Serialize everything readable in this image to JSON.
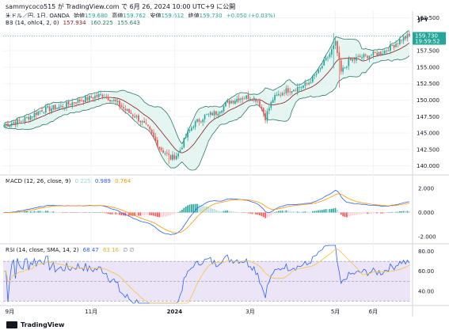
{
  "header": {
    "text": "sammycoco515 が TradingView.com で 6月 26, 2024 10:00 UTC+9 に公開"
  },
  "main_legend": {
    "symbol": "米ドル／円, 1日, OANDA",
    "open_label": "始値",
    "open": "159.680",
    "high_label": "高値",
    "high": "159.762",
    "low_label": "安値",
    "low": "159.612",
    "close_label": "終値",
    "close": "159.730",
    "change": "+0.050 (+0.03%)"
  },
  "bb_legend": {
    "label": "BB (14, ohlc4, 2, 0)",
    "basis": "157.934",
    "upper": "160.225",
    "lower": "155.643"
  },
  "macd_legend": {
    "label": "MACD (12, 26, close, 9)",
    "histogram": "0.225",
    "macd": "0.989",
    "signal": "0.764"
  },
  "rsi_legend": {
    "label": "RSI (14, close, SMA, 14, 2)",
    "rsi": "68.47",
    "ma": "63.16",
    "extra": "∅ ∅"
  },
  "currency": "JPY",
  "price_tag": {
    "value": "159.730",
    "time": "19:59:52"
  },
  "footer": {
    "brand": "TradingView"
  },
  "colors": {
    "up": "#26a69a",
    "down": "#ef5350",
    "bb_fill": "#dff3ee",
    "bb_line": "#2b7a66",
    "basis": "#8b1a1a",
    "macd": "#2962ff",
    "signal": "#ff9800",
    "rsi": "#2962ff",
    "rsi_ma": "#f5c242",
    "rsi_band": "#ece5f8"
  },
  "chart_data": [
    {
      "type": "candlestick",
      "title": "米ドル／円, 1日, OANDA",
      "y_ticks": [
        "162.500",
        "160.000",
        "157.500",
        "155.000",
        "152.500",
        "150.000",
        "147.500",
        "145.000",
        "142.500",
        "140.000"
      ],
      "ylim": [
        139,
        162.8
      ],
      "x_ticks": [
        {
          "label": "9月",
          "x": 3
        },
        {
          "label": "11月",
          "x": 46
        },
        {
          "label": "2024",
          "x": 90
        },
        {
          "label": "3月",
          "x": 130
        },
        {
          "label": "5月",
          "x": 175
        },
        {
          "label": "6月",
          "x": 195
        }
      ],
      "x_count": 215,
      "close_keypoints": [
        [
          0,
          146.2
        ],
        [
          10,
          147.0
        ],
        [
          20,
          148.5
        ],
        [
          30,
          149.0
        ],
        [
          38,
          149.8
        ],
        [
          46,
          150.4
        ],
        [
          52,
          150.8
        ],
        [
          58,
          149.9
        ],
        [
          64,
          148.5
        ],
        [
          70,
          147.4
        ],
        [
          76,
          145.7
        ],
        [
          82,
          142.8
        ],
        [
          88,
          141.2
        ],
        [
          92,
          141.8
        ],
        [
          96,
          144.5
        ],
        [
          100,
          146.3
        ],
        [
          106,
          147.6
        ],
        [
          112,
          148.1
        ],
        [
          118,
          149.6
        ],
        [
          124,
          150.3
        ],
        [
          130,
          150.5
        ],
        [
          134,
          150.0
        ],
        [
          138,
          147.4
        ],
        [
          142,
          150.2
        ],
        [
          148,
          151.4
        ],
        [
          154,
          151.8
        ],
        [
          160,
          152.4
        ],
        [
          166,
          154.3
        ],
        [
          172,
          157.0
        ],
        [
          175,
          158.6
        ],
        [
          178,
          154.2
        ],
        [
          182,
          155.9
        ],
        [
          188,
          156.5
        ],
        [
          194,
          156.9
        ],
        [
          200,
          157.3
        ],
        [
          206,
          158.4
        ],
        [
          210,
          159.3
        ],
        [
          214,
          159.73
        ]
      ],
      "spikes": [
        {
          "x": 174,
          "high": 160.2,
          "low": 154.8
        },
        {
          "x": 177,
          "high": 158.2,
          "low": 151.9
        },
        {
          "x": 138,
          "high": 148.5,
          "low": 146.5
        },
        {
          "x": 87,
          "high": 142.5,
          "low": 140.3
        }
      ],
      "bollinger": {
        "period": 14,
        "mult": 2,
        "basis_last": 157.934,
        "upper_last": 160.225,
        "lower_last": 155.643
      }
    },
    {
      "type": "macd",
      "title": "MACD (12, 26, close, 9)",
      "y_ticks": [
        "2.000",
        "0.000",
        "-2.000"
      ],
      "ylim": [
        -2.4,
        2.4
      ],
      "histogram_last": 0.225,
      "macd_last": 0.989,
      "signal_last": 0.764
    },
    {
      "type": "rsi",
      "title": "RSI (14, close, SMA, 14, 2)",
      "y_ticks": [
        "80.00",
        "60.00",
        "40.00"
      ],
      "ylim": [
        28,
        86
      ],
      "band": [
        30,
        70
      ],
      "rsi_last": 68.47,
      "ma_last": 63.16
    }
  ]
}
